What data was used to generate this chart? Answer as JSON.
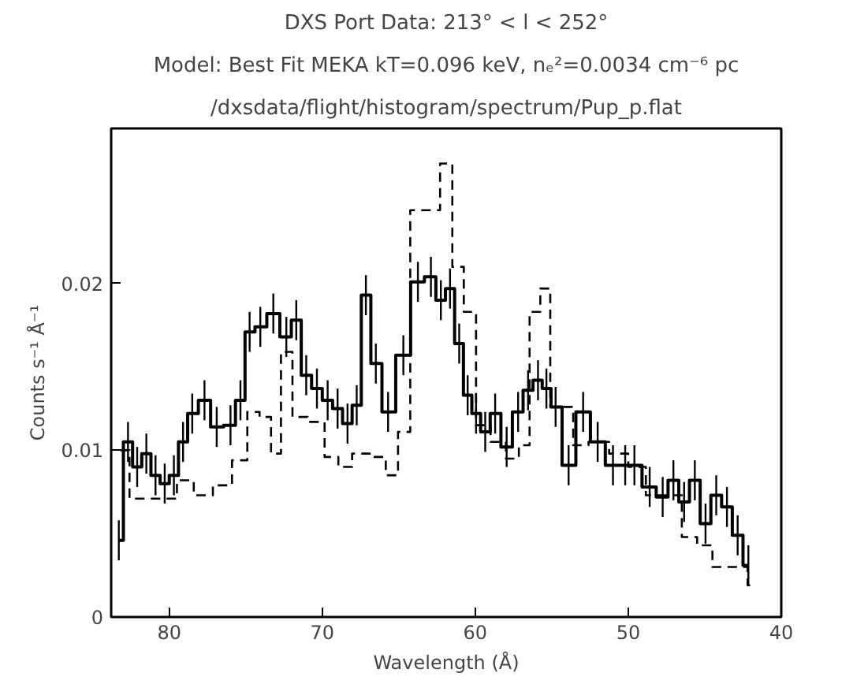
{
  "chart_data": {
    "type": "step",
    "title": "DXS Port Data: 213° < l < 252°",
    "subtitle": "Model: Best Fit MEKA kT=0.096 keV, nₑ²=0.0034 cm⁻⁶ pc",
    "annotations": [
      "/dxsdata/flight/histogram/spectrum/Pup_p.flat"
    ],
    "xlabel": "Wavelength (Å)",
    "ylabel": "Counts s⁻¹ Å⁻¹",
    "xlim": [
      83.8,
      40
    ],
    "ylim": [
      0,
      0.0293
    ],
    "xticks": [
      80,
      70,
      60,
      50,
      40
    ],
    "yticks": [
      0,
      0.01,
      0.02
    ],
    "grid": false,
    "marker": "none",
    "series": [
      {
        "color": "#000000",
        "line_style": "solid",
        "x": [
          83.3,
          82.7,
          82.1,
          81.5,
          80.9,
          80.3,
          79.7,
          79.1,
          78.5,
          77.7,
          76.9,
          76.0,
          75.35,
          74.75,
          74.05,
          73.2,
          72.35,
          71.7,
          71.05,
          70.35,
          69.65,
          69.0,
          68.35,
          67.75,
          67.15,
          66.5,
          65.7,
          64.7,
          63.75,
          62.9,
          62.25,
          61.65,
          61.05,
          60.5,
          59.95,
          59.35,
          58.7,
          57.95,
          57.2,
          56.55,
          55.9,
          55.35,
          54.75,
          53.9,
          52.95,
          52.0,
          51.0,
          50.2,
          49.6,
          48.6,
          47.75,
          47.05,
          46.35,
          45.65,
          44.95,
          44.25,
          43.55,
          42.85,
          42.15
        ],
        "values": [
          0.0046,
          0.0105,
          0.009,
          0.0098,
          0.0085,
          0.008,
          0.0085,
          0.0105,
          0.0122,
          0.013,
          0.0114,
          0.0115,
          0.013,
          0.0171,
          0.0174,
          0.0182,
          0.0168,
          0.0178,
          0.0145,
          0.0137,
          0.013,
          0.0125,
          0.0116,
          0.0127,
          0.0193,
          0.0152,
          0.0123,
          0.0157,
          0.0201,
          0.0204,
          0.019,
          0.0197,
          0.0164,
          0.0133,
          0.0122,
          0.0111,
          0.0122,
          0.0102,
          0.0123,
          0.0136,
          0.0142,
          0.0137,
          0.0126,
          0.0091,
          0.0123,
          0.0105,
          0.0091,
          0.0091,
          0.0091,
          0.0078,
          0.0072,
          0.0082,
          0.0069,
          0.0082,
          0.0056,
          0.0073,
          0.0066,
          0.0049,
          0.0031
        ],
        "errors": [
          0.0012,
          0.0012,
          0.0012,
          0.0012,
          0.0012,
          0.0012,
          0.0012,
          0.0012,
          0.0012,
          0.0012,
          0.0012,
          0.0012,
          0.0012,
          0.0012,
          0.0012,
          0.0012,
          0.0012,
          0.0012,
          0.0012,
          0.0012,
          0.0012,
          0.0012,
          0.0012,
          0.0012,
          0.0012,
          0.0012,
          0.0012,
          0.0012,
          0.0012,
          0.0012,
          0.0012,
          0.0012,
          0.0012,
          0.0012,
          0.0012,
          0.0012,
          0.0012,
          0.0012,
          0.0012,
          0.0012,
          0.0012,
          0.0012,
          0.0012,
          0.0012,
          0.0012,
          0.0012,
          0.0012,
          0.0012,
          0.0012,
          0.0012,
          0.0012,
          0.0012,
          0.0012,
          0.0012,
          0.0012,
          0.0012,
          0.0012,
          0.0012,
          0.0012
        ]
      },
      {
        "color": "#000000",
        "line_style": "dashed",
        "x": [
          83.2,
          82.0,
          80.0,
          79.0,
          77.8,
          76.5,
          75.3,
          74.5,
          73.7,
          73.0,
          72.4,
          71.5,
          70.4,
          69.3,
          68.6,
          67.5,
          66.3,
          65.4,
          64.7,
          63.8,
          62.7,
          61.9,
          61.1,
          60.4,
          59.5,
          58.5,
          57.5,
          56.8,
          56.1,
          55.4,
          54.8,
          54.0,
          53.2,
          52.0,
          50.5,
          49.5,
          48.2,
          47.0,
          46.0,
          45.0,
          44.0,
          42.6,
          41.8
        ],
        "values": [
          0.01,
          0.0071,
          0.0071,
          0.0082,
          0.0073,
          0.0079,
          0.0094,
          0.0123,
          0.012,
          0.0098,
          0.0159,
          0.012,
          0.0117,
          0.0096,
          0.009,
          0.0098,
          0.0096,
          0.0085,
          0.0111,
          0.0244,
          0.0244,
          0.0272,
          0.021,
          0.0183,
          0.0115,
          0.0105,
          0.0095,
          0.0103,
          0.0183,
          0.0197,
          0.0126,
          0.0126,
          0.0103,
          0.0105,
          0.0098,
          0.009,
          0.0073,
          0.0073,
          0.0048,
          0.0043,
          0.003,
          0.003,
          0.0019
        ]
      }
    ]
  }
}
